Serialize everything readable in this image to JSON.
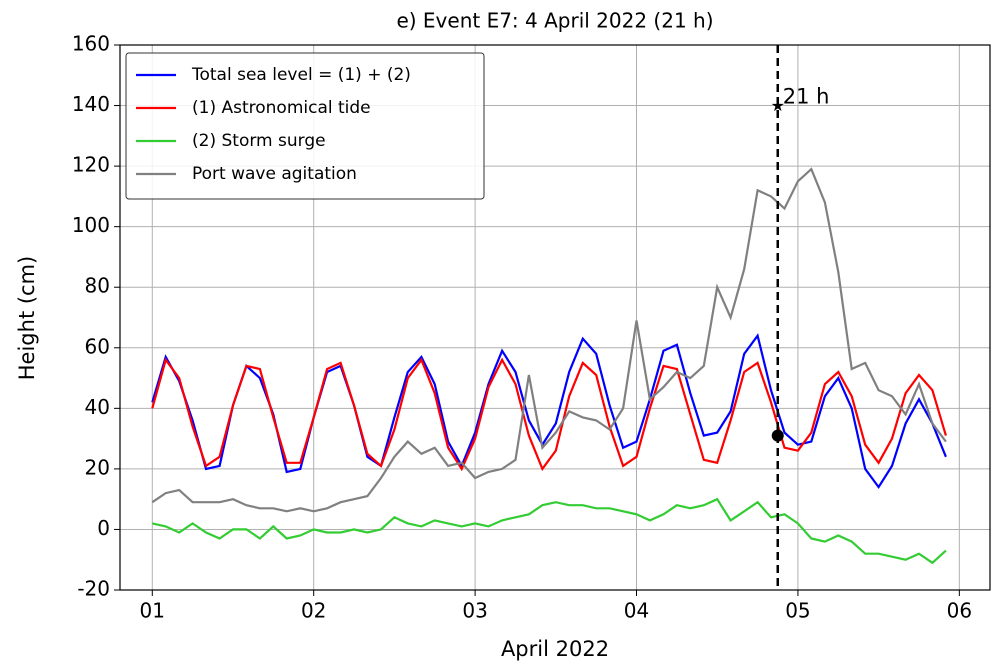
{
  "chart_data": {
    "type": "line",
    "title": "e) Event E7: 4 April 2022 (21 h)",
    "x_label": "April 2022",
    "y_label": "Height (cm)",
    "xlim": [
      0.8,
      6.19
    ],
    "ylim": [
      -20,
      160
    ],
    "xticks": [
      {
        "value": 1,
        "label": "01"
      },
      {
        "value": 2,
        "label": "02"
      },
      {
        "value": 3,
        "label": "03"
      },
      {
        "value": 4,
        "label": "04"
      },
      {
        "value": 5,
        "label": "05"
      },
      {
        "value": 6,
        "label": "06"
      }
    ],
    "yticks": [
      -20,
      0,
      20,
      40,
      60,
      80,
      100,
      120,
      140,
      160
    ],
    "grid": true,
    "legend": "upper left",
    "x": [
      1.0,
      1.083,
      1.167,
      1.25,
      1.333,
      1.417,
      1.5,
      1.583,
      1.667,
      1.75,
      1.833,
      1.917,
      2.0,
      2.083,
      2.167,
      2.25,
      2.333,
      2.417,
      2.5,
      2.583,
      2.667,
      2.75,
      2.833,
      2.917,
      3.0,
      3.083,
      3.167,
      3.25,
      3.333,
      3.417,
      3.5,
      3.583,
      3.667,
      3.75,
      3.833,
      3.917,
      4.0,
      4.083,
      4.167,
      4.25,
      4.333,
      4.417,
      4.5,
      4.583,
      4.667,
      4.75,
      4.833,
      4.917,
      5.0,
      5.083,
      5.167,
      5.25,
      5.333,
      5.417,
      5.5,
      5.583,
      5.667,
      5.75,
      5.833,
      5.917
    ],
    "series": [
      {
        "name": "Total sea level = (1) + (2)",
        "color": "#0000ff",
        "values": [
          42,
          57,
          49,
          36,
          20,
          21,
          41,
          54,
          50,
          38,
          19,
          20,
          37,
          52,
          54,
          41,
          24,
          21,
          37,
          52,
          57,
          48,
          29,
          21,
          32,
          48,
          59,
          52,
          36,
          28,
          35,
          52,
          63,
          58,
          41,
          27,
          29,
          43,
          59,
          61,
          45,
          31,
          32,
          39,
          58,
          64,
          46,
          32,
          28,
          29,
          44,
          50,
          40,
          20,
          14,
          21,
          35,
          43,
          35,
          24
        ]
      },
      {
        "name": "(1) Astronomical tide",
        "color": "#ff0000",
        "values": [
          40,
          56,
          50,
          34,
          21,
          24,
          41,
          54,
          53,
          37,
          22,
          22,
          37,
          53,
          55,
          41,
          25,
          21,
          33,
          50,
          56,
          45,
          27,
          20,
          30,
          47,
          56,
          48,
          31,
          20,
          26,
          44,
          55,
          51,
          34,
          21,
          24,
          40,
          54,
          53,
          38,
          23,
          22,
          36,
          52,
          55,
          42,
          27,
          26,
          32,
          48,
          52,
          44,
          28,
          22,
          30,
          45,
          51,
          46,
          31
        ]
      },
      {
        "name": "(2) Storm surge",
        "color": "#33cc33",
        "values": [
          2,
          1,
          -1,
          2,
          -1,
          -3,
          0,
          0,
          -3,
          1,
          -3,
          -2,
          0,
          -1,
          -1,
          0,
          -1,
          0,
          4,
          2,
          1,
          3,
          2,
          1,
          2,
          1,
          3,
          4,
          5,
          8,
          9,
          8,
          8,
          7,
          7,
          6,
          5,
          3,
          5,
          8,
          7,
          8,
          10,
          3,
          6,
          9,
          4,
          5,
          2,
          -3,
          -4,
          -2,
          -4,
          -8,
          -8,
          -9,
          -10,
          -8,
          -11,
          -7
        ]
      },
      {
        "name": "Port wave agitation",
        "color": "#808080",
        "values": [
          9,
          12,
          13,
          9,
          9,
          9,
          10,
          8,
          7,
          7,
          6,
          7,
          6,
          7,
          9,
          10,
          11,
          17,
          24,
          29,
          25,
          27,
          21,
          22,
          17,
          19,
          20,
          23,
          51,
          27,
          32,
          39,
          37,
          36,
          33,
          40,
          69,
          43,
          47,
          52,
          50,
          54,
          80,
          70,
          86,
          112,
          110,
          106,
          115,
          119,
          108,
          85,
          53,
          55,
          46,
          44,
          38,
          48,
          35,
          29
        ]
      }
    ],
    "event": {
      "x": 4.875,
      "label": "21 h",
      "peak": 140,
      "level": 31
    }
  }
}
